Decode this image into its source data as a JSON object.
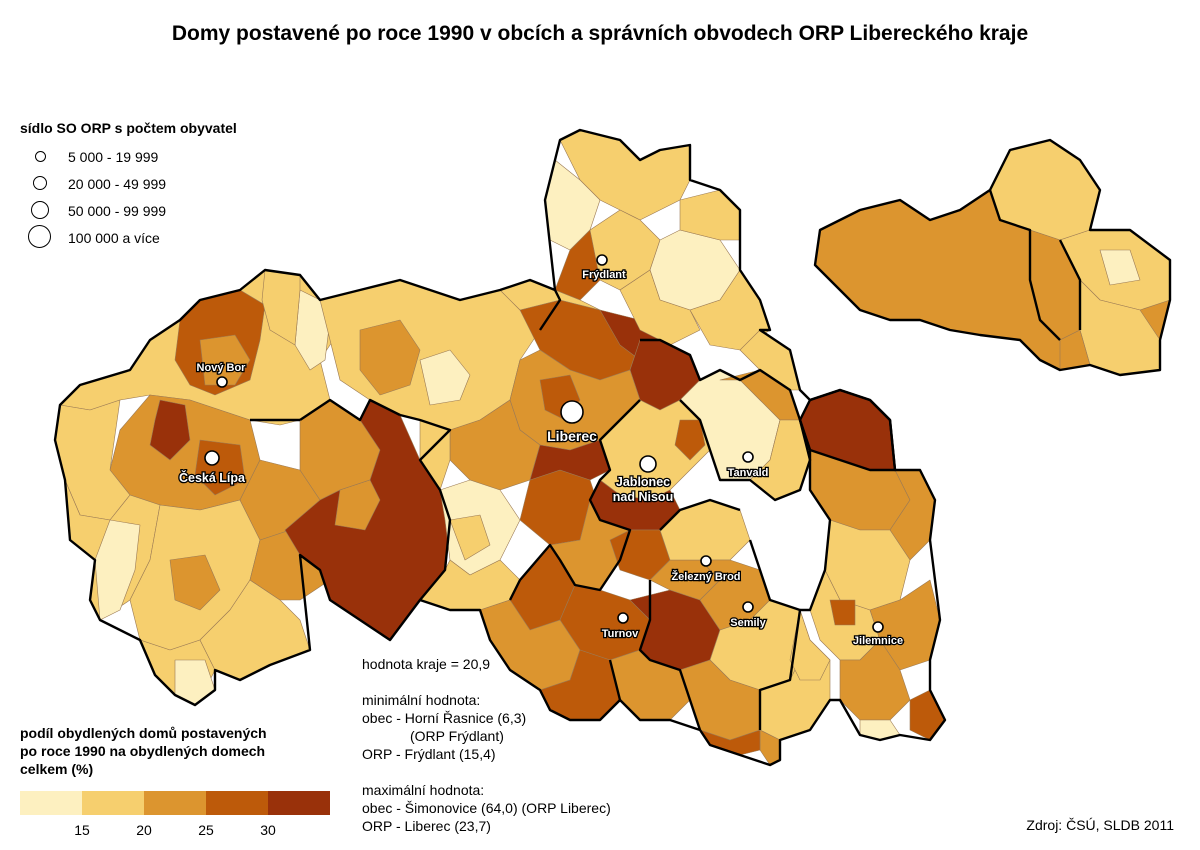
{
  "title": "Domy postavené po roce 1990 v obcích a správních obvodech ORP Libereckého kraje",
  "population_legend": {
    "title": "sídlo SO ORP s počtem obyvatel",
    "items": [
      {
        "label": "5 000 - 19 999",
        "size": 1
      },
      {
        "label": "20 000 - 49 999",
        "size": 2
      },
      {
        "label": "50 000 - 99 999",
        "size": 3
      },
      {
        "label": "100 000 a více",
        "size": 4
      }
    ]
  },
  "share_legend": {
    "title_lines": [
      "podíl obydlených domů postavených",
      "po roce 1990 na obydlených domech",
      "celkem (%)"
    ],
    "classes": [
      "#fdf0c0",
      "#f6cf6e",
      "#dc952f",
      "#bd5a0a",
      "#99310a"
    ],
    "ticks": [
      "15",
      "20",
      "25",
      "30"
    ]
  },
  "cities": [
    {
      "name": "Liberec",
      "size": 4
    },
    {
      "name": "Nový Bor",
      "size": 1
    },
    {
      "name": "Česká Lípa",
      "size": 2
    },
    {
      "name": "Frýdlant",
      "size": 1
    },
    {
      "name": "Jablonec nad Nisou",
      "size": 3
    },
    {
      "name": "Tanvald",
      "size": 1
    },
    {
      "name": "Železný Brod",
      "size": 1
    },
    {
      "name": "Turnov",
      "size": 1
    },
    {
      "name": "Semily",
      "size": 1
    },
    {
      "name": "Jilemnice",
      "size": 1
    }
  ],
  "stats": {
    "region_value": "hodnota kraje = 20,9",
    "min_title": "minimální hodnota:",
    "min_obec": "obec - Horní Řasnice (6,3)",
    "min_obec_orp": "(ORP Frýdlant)",
    "min_orp": "ORP - Frýdlant (15,4)",
    "max_title": "maximální hodnota:",
    "max_obec": "obec - Šimonovice (64,0) (ORP Liberec)",
    "max_orp": "ORP - Liberec (23,7)"
  },
  "source": "Zdroj: ČSÚ, SLDB 2011"
}
